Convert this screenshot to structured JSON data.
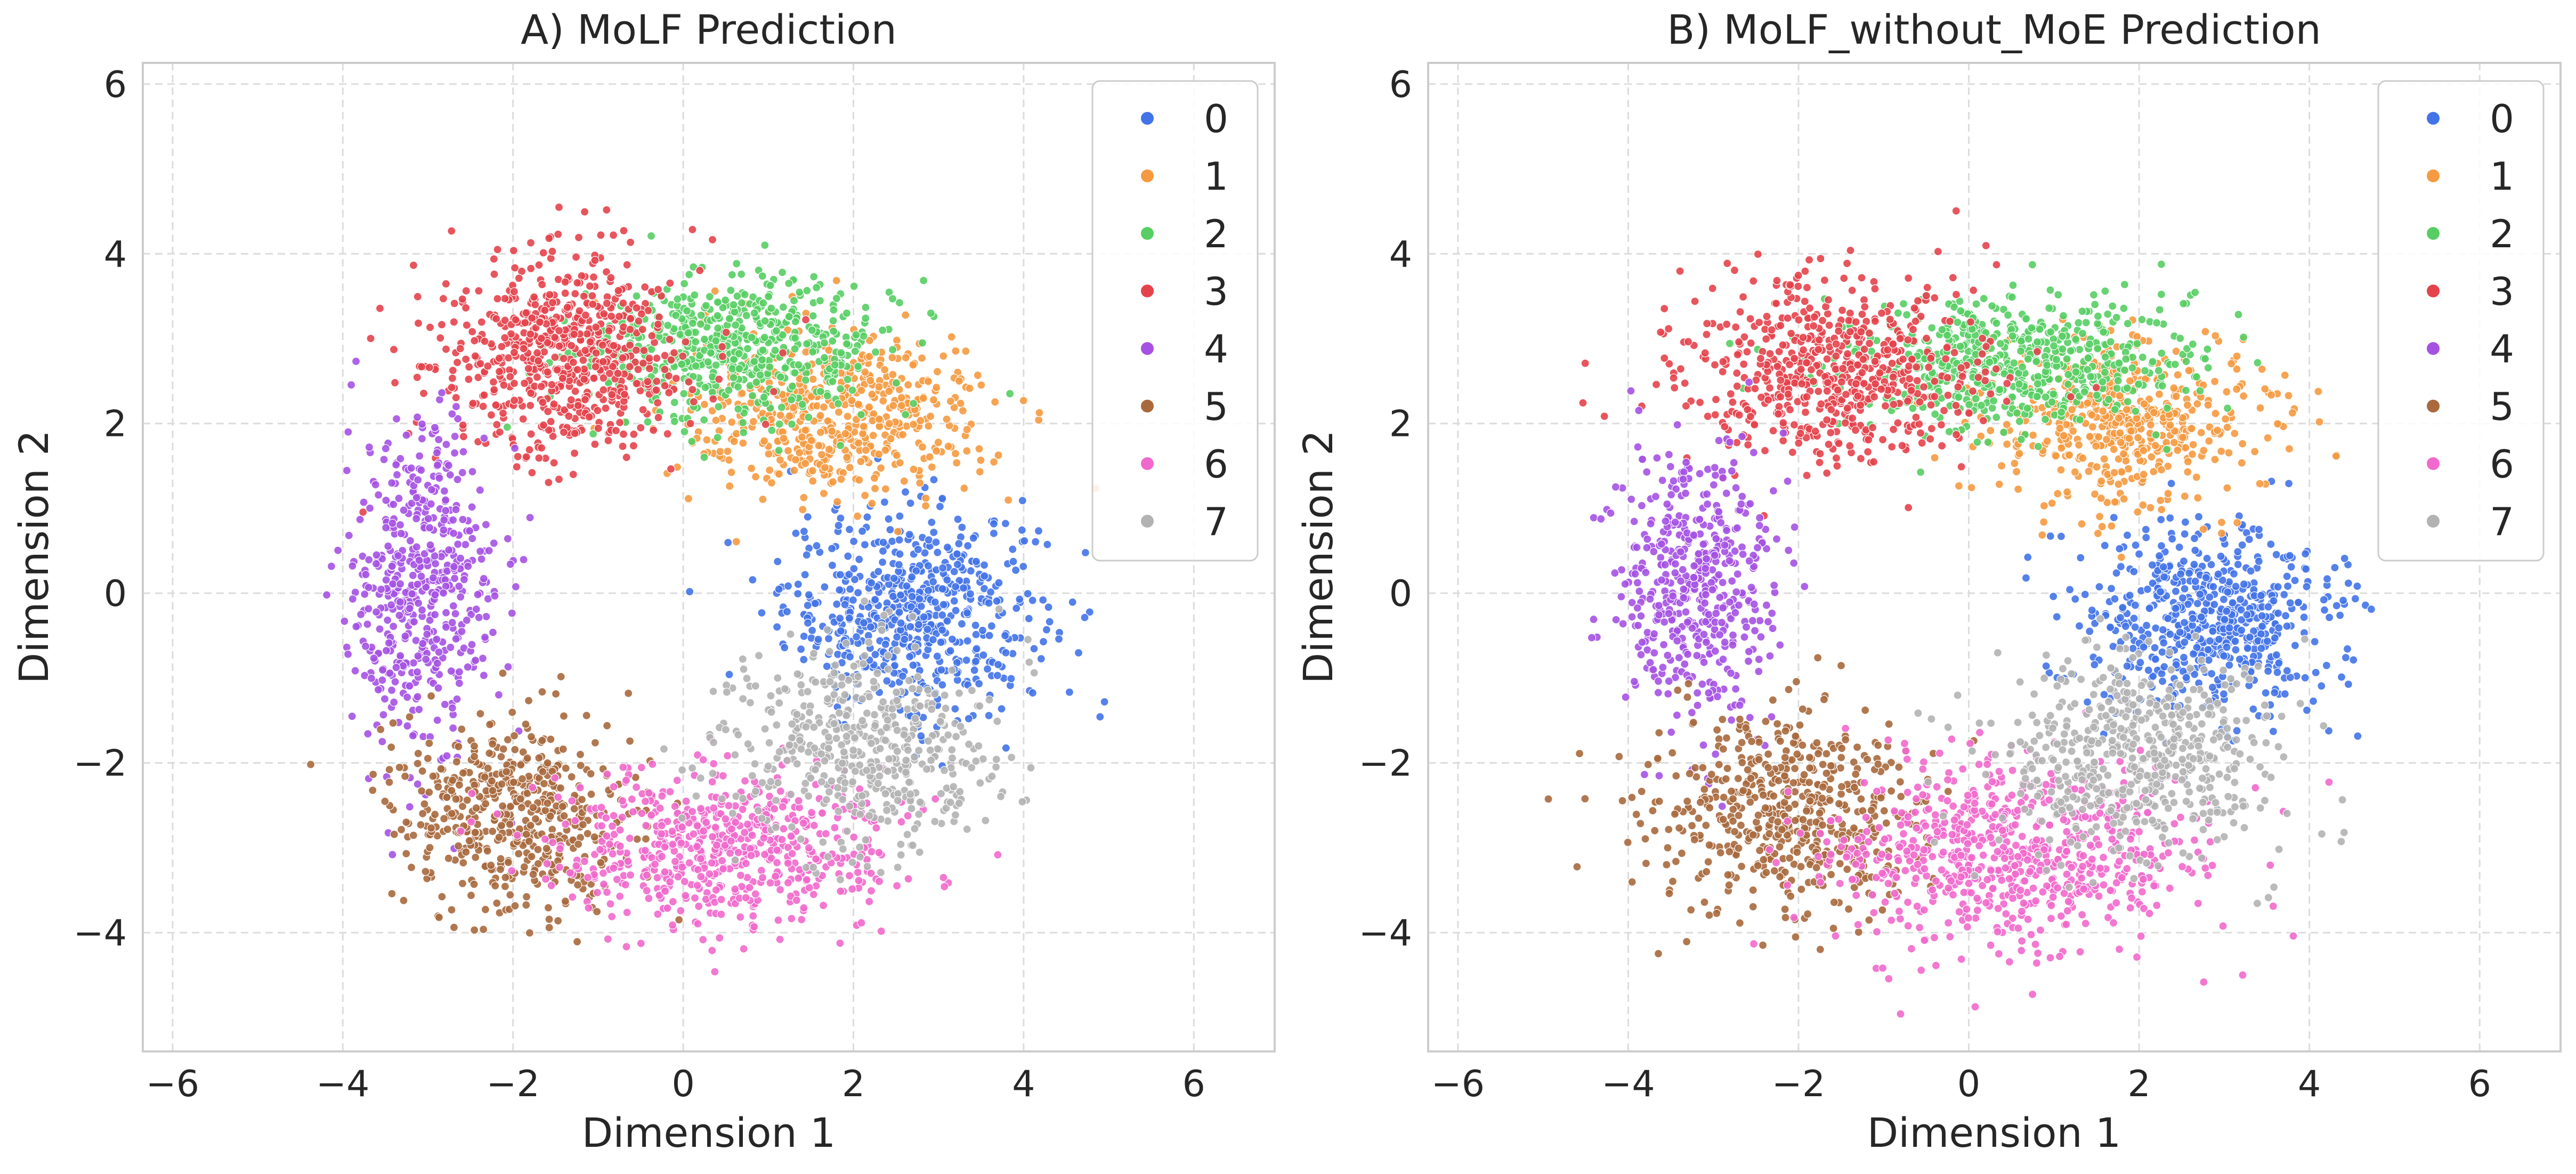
{
  "colors": {
    "0": "#4373e8",
    "1": "#f59a40",
    "2": "#56ce63",
    "3": "#e5434b",
    "4": "#a552e3",
    "5": "#a9693d",
    "6": "#f169cc",
    "7": "#b2b2b2",
    "grid": "#dcdcdc",
    "frame": "#cccccc"
  },
  "chart_data": [
    {
      "type": "scatter",
      "title": "A) MoLF Prediction",
      "xlabel": "Dimension 1",
      "ylabel": "Dimension 2",
      "xlim": [
        -6.35,
        6.95
      ],
      "ylim": [
        -5.4,
        6.25
      ],
      "xticks": [
        -6,
        -4,
        -2,
        0,
        2,
        4,
        6
      ],
      "yticks": [
        -4,
        -2,
        0,
        2,
        4,
        6
      ],
      "grid": true,
      "legend": {
        "placement": "top-right",
        "entries": [
          "0",
          "1",
          "2",
          "3",
          "4",
          "5",
          "6",
          "7"
        ]
      },
      "series": [
        {
          "name": "0",
          "center": [
            2.7,
            -0.2
          ],
          "spread": [
            0.75,
            0.6
          ],
          "n": 600
        },
        {
          "name": "1",
          "center": [
            1.8,
            2.1
          ],
          "spread": [
            0.9,
            0.5
          ],
          "n": 550
        },
        {
          "name": "2",
          "center": [
            0.6,
            2.9
          ],
          "spread": [
            0.9,
            0.4
          ],
          "n": 600
        },
        {
          "name": "3",
          "center": [
            -1.4,
            2.8
          ],
          "spread": [
            0.75,
            0.6
          ],
          "n": 650
        },
        {
          "name": "4",
          "center": [
            -3.1,
            0.1
          ],
          "spread": [
            0.45,
            0.9
          ],
          "n": 520
        },
        {
          "name": "5",
          "center": [
            -2.0,
            -2.6
          ],
          "spread": [
            0.7,
            0.55
          ],
          "n": 520
        },
        {
          "name": "6",
          "center": [
            0.4,
            -3.0
          ],
          "spread": [
            1.0,
            0.45
          ],
          "n": 600
        },
        {
          "name": "7",
          "center": [
            2.1,
            -1.8
          ],
          "spread": [
            0.8,
            0.6
          ],
          "n": 500
        }
      ]
    },
    {
      "type": "scatter",
      "title": "B) MoLF_without_MoE Prediction",
      "xlabel": "Dimension 1",
      "ylabel": "Dimension 2",
      "xlim": [
        -6.35,
        6.95
      ],
      "ylim": [
        -5.4,
        6.25
      ],
      "xticks": [
        -6,
        -4,
        -2,
        0,
        2,
        4,
        6
      ],
      "yticks": [
        -4,
        -2,
        0,
        2,
        4,
        6
      ],
      "grid": true,
      "legend": {
        "placement": "top-right",
        "entries": [
          "0",
          "1",
          "2",
          "3",
          "4",
          "5",
          "6",
          "7"
        ]
      },
      "series": [
        {
          "name": "0",
          "center": [
            2.8,
            -0.3
          ],
          "spread": [
            0.75,
            0.55
          ],
          "n": 600
        },
        {
          "name": "1",
          "center": [
            1.8,
            2.0
          ],
          "spread": [
            0.8,
            0.5
          ],
          "n": 500
        },
        {
          "name": "2",
          "center": [
            0.5,
            2.7
          ],
          "spread": [
            1.0,
            0.4
          ],
          "n": 600
        },
        {
          "name": "3",
          "center": [
            -1.6,
            2.6
          ],
          "spread": [
            0.9,
            0.55
          ],
          "n": 600
        },
        {
          "name": "4",
          "center": [
            -3.2,
            0.1
          ],
          "spread": [
            0.45,
            0.85
          ],
          "n": 480
        },
        {
          "name": "5",
          "center": [
            -2.1,
            -2.6
          ],
          "spread": [
            0.8,
            0.6
          ],
          "n": 560
        },
        {
          "name": "6",
          "center": [
            0.5,
            -3.1
          ],
          "spread": [
            1.1,
            0.55
          ],
          "n": 700
        },
        {
          "name": "7",
          "center": [
            2.0,
            -1.9
          ],
          "spread": [
            0.85,
            0.6
          ],
          "n": 560
        }
      ]
    }
  ]
}
